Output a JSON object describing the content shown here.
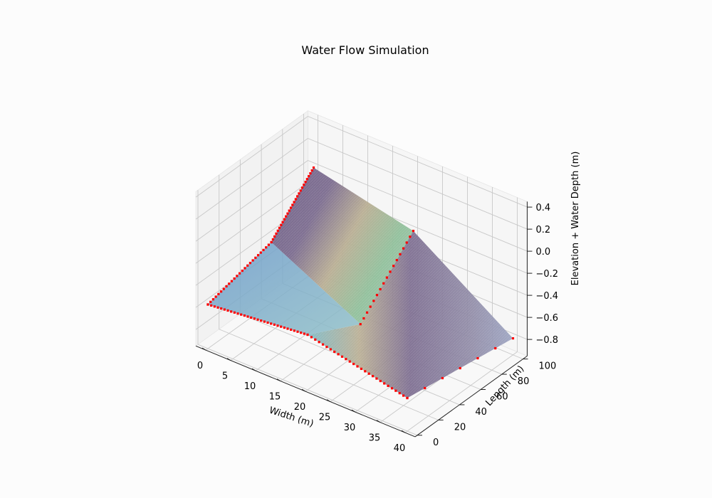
{
  "chart_data": {
    "type": "surface3d",
    "title": "Water Flow Simulation",
    "xlabel": "Width (m)",
    "ylabel": "Length (m)",
    "zlabel": "Elevation + Water Depth (m)",
    "xlim": [
      -2,
      42
    ],
    "ylim": [
      -2,
      104
    ],
    "zlim": [
      -0.95,
      0.45
    ],
    "x_ticks": [
      0,
      5,
      10,
      15,
      20,
      25,
      30,
      35,
      40
    ],
    "y_ticks": [
      0,
      20,
      40,
      60,
      80,
      100
    ],
    "z_ticks": [
      0.4,
      0.2,
      0.0,
      -0.2,
      -0.4,
      -0.6,
      -0.8
    ],
    "z_tick_labels": [
      "0.4",
      "0.2",
      "0.0",
      "−0.2",
      "−0.4",
      "−0.6",
      "−0.8"
    ],
    "grid": true,
    "surface": {
      "description_points": [
        {
          "x": 0,
          "y": 100,
          "z": 0.0
        },
        {
          "x": 20,
          "y": 100,
          "z": -0.2
        },
        {
          "x": 40,
          "y": 100,
          "z": -0.8
        },
        {
          "x": 0,
          "y": 60,
          "z": -0.4
        },
        {
          "x": 20,
          "y": 50,
          "z": -0.7
        },
        {
          "x": 40,
          "y": 0,
          "z": -0.65
        },
        {
          "x": 20,
          "y": 0,
          "z": -0.45
        },
        {
          "x": 0,
          "y": 0,
          "z": -0.55
        }
      ]
    },
    "boundary_marker_color": "#ff0000"
  },
  "colors": {
    "background": "#fcfcfc",
    "grid": "#c8c8c8",
    "pane": "#f2f2f2",
    "surface_purple": "#6f5f86",
    "surface_tan": "#b8ad92",
    "surface_green": "#8fbf9a",
    "surface_blue": "#6f9fc9",
    "boundary": "#ff0000"
  }
}
